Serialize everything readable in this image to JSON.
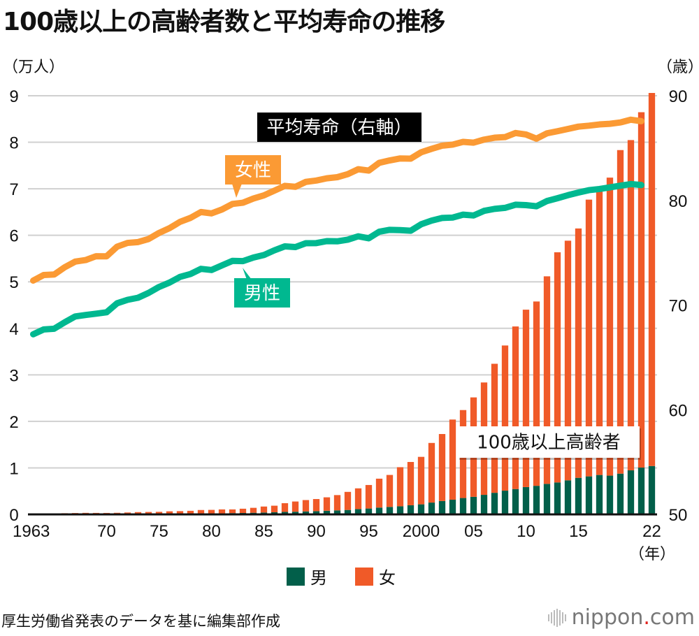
{
  "title": "100歳以上の高齢者数と平均寿命の推移",
  "left_unit": "（万人）",
  "right_unit": "（歳）",
  "year_unit": "（年）",
  "source": "厚生労働省発表のデータを基に編集部作成",
  "logo": {
    "text": "nippon",
    "dot": ".",
    "suffix": "com"
  },
  "colors": {
    "male_bar": "#025f4a",
    "female_bar": "#f05a28",
    "female_line": "#fb9a34",
    "male_line": "#00b890",
    "grid": "#d0d0d0"
  },
  "chart_data": {
    "type": "bar+line",
    "title": "100歳以上の高齢者数と平均寿命の推移",
    "xlabel": "（年）",
    "ylabel_left": "（万人）",
    "ylabel_right": "（歳）",
    "ylim_left": [
      0,
      9
    ],
    "ylim_right": [
      50,
      90
    ],
    "left_ticks": [
      "0",
      "1",
      "2",
      "3",
      "4",
      "5",
      "6",
      "7",
      "8",
      "9"
    ],
    "right_ticks": [
      "50",
      "60",
      "70",
      "80",
      "90"
    ],
    "x_ticks": [
      {
        "year": 1963,
        "label": "1963"
      },
      {
        "year": 1970,
        "label": "70"
      },
      {
        "year": 1975,
        "label": "75"
      },
      {
        "year": 1980,
        "label": "80"
      },
      {
        "year": 1985,
        "label": "85"
      },
      {
        "year": 1990,
        "label": "90"
      },
      {
        "year": 1995,
        "label": "95"
      },
      {
        "year": 2000,
        "label": "2000"
      },
      {
        "year": 2005,
        "label": "05"
      },
      {
        "year": 2010,
        "label": "10"
      },
      {
        "year": 2015,
        "label": "15"
      },
      {
        "year": 2022,
        "label": "22"
      }
    ],
    "grid": true,
    "years": [
      1963,
      1964,
      1965,
      1966,
      1967,
      1968,
      1969,
      1970,
      1971,
      1972,
      1973,
      1974,
      1975,
      1976,
      1977,
      1978,
      1979,
      1980,
      1981,
      1982,
      1983,
      1984,
      1985,
      1986,
      1987,
      1988,
      1989,
      1990,
      1991,
      1992,
      1993,
      1994,
      1995,
      1996,
      1997,
      1998,
      1999,
      2000,
      2001,
      2002,
      2003,
      2004,
      2005,
      2006,
      2007,
      2008,
      2009,
      2010,
      2011,
      2012,
      2013,
      2014,
      2015,
      2016,
      2017,
      2018,
      2019,
      2020,
      2021,
      2022
    ],
    "bar_series": [
      {
        "name": "男",
        "stack": "centenarians",
        "values": [
          0.002,
          0.002,
          0.0025,
          0.003,
          0.0035,
          0.004,
          0.004,
          0.005,
          0.005,
          0.006,
          0.007,
          0.008,
          0.009,
          0.011,
          0.012,
          0.014,
          0.016,
          0.019,
          0.022,
          0.028,
          0.03,
          0.035,
          0.04,
          0.045,
          0.053,
          0.057,
          0.064,
          0.069,
          0.078,
          0.086,
          0.095,
          0.114,
          0.126,
          0.146,
          0.16,
          0.174,
          0.196,
          0.216,
          0.254,
          0.287,
          0.316,
          0.352,
          0.378,
          0.42,
          0.464,
          0.51,
          0.545,
          0.587,
          0.614,
          0.656,
          0.687,
          0.732,
          0.786,
          0.817,
          0.847,
          0.833,
          0.876,
          0.947,
          1.006,
          1.04
        ]
      },
      {
        "name": "女",
        "stack": "centenarians",
        "values": [
          0.0133,
          0.0171,
          0.0177,
          0.0222,
          0.0255,
          0.0286,
          0.0276,
          0.026,
          0.029,
          0.035,
          0.042,
          0.044,
          0.046,
          0.055,
          0.058,
          0.063,
          0.078,
          0.078,
          0.085,
          0.079,
          0.092,
          0.106,
          0.129,
          0.142,
          0.188,
          0.22,
          0.244,
          0.261,
          0.289,
          0.329,
          0.389,
          0.446,
          0.506,
          0.622,
          0.688,
          0.841,
          0.931,
          1.021,
          1.282,
          1.441,
          1.723,
          1.891,
          2.137,
          2.416,
          2.774,
          3.121,
          3.495,
          3.814,
          3.963,
          4.462,
          4.948,
          5.152,
          5.361,
          5.95,
          6.15,
          6.407,
          6.956,
          7.1,
          7.64,
          8.02
        ]
      }
    ],
    "line_series": [
      {
        "name": "女性",
        "axis": "right",
        "years_to": 2021,
        "values": [
          72.34,
          72.87,
          72.92,
          73.61,
          74.15,
          74.3,
          74.67,
          74.66,
          75.58,
          75.94,
          76.02,
          76.31,
          76.89,
          77.35,
          77.95,
          78.33,
          78.89,
          78.76,
          79.13,
          79.66,
          79.78,
          80.18,
          80.48,
          80.93,
          81.39,
          81.3,
          81.77,
          81.9,
          82.11,
          82.22,
          82.51,
          82.98,
          82.85,
          83.59,
          83.82,
          84.01,
          83.99,
          84.6,
          84.93,
          85.23,
          85.33,
          85.59,
          85.52,
          85.81,
          85.99,
          86.05,
          86.44,
          86.3,
          85.9,
          86.41,
          86.61,
          86.83,
          87.05,
          87.14,
          87.26,
          87.32,
          87.45,
          87.71,
          87.57
        ]
      },
      {
        "name": "男性",
        "axis": "right",
        "years_to": 2021,
        "values": [
          67.21,
          67.67,
          67.74,
          68.35,
          68.91,
          69.05,
          69.18,
          69.31,
          70.17,
          70.5,
          70.7,
          71.16,
          71.73,
          72.15,
          72.69,
          72.97,
          73.46,
          73.35,
          73.79,
          74.22,
          74.2,
          74.54,
          74.78,
          75.23,
          75.61,
          75.54,
          75.91,
          75.92,
          76.11,
          76.09,
          76.25,
          76.57,
          76.38,
          77.01,
          77.19,
          77.16,
          77.1,
          77.72,
          78.07,
          78.32,
          78.36,
          78.64,
          78.56,
          79.0,
          79.19,
          79.29,
          79.59,
          79.55,
          79.44,
          79.94,
          80.21,
          80.5,
          80.75,
          80.98,
          81.09,
          81.25,
          81.41,
          81.56,
          81.47
        ]
      }
    ],
    "annotations": [
      {
        "text": "平均寿命（右軸）",
        "style": "black-box"
      },
      {
        "text": "女性",
        "style": "orange-callout"
      },
      {
        "text": "男性",
        "style": "green-callout"
      },
      {
        "text": "100歳以上高齢者",
        "style": "white-box"
      }
    ],
    "legend": {
      "placement": "bottom-center",
      "items": [
        {
          "label": "男",
          "color": "#025f4a"
        },
        {
          "label": "女",
          "color": "#f05a28"
        }
      ]
    }
  }
}
